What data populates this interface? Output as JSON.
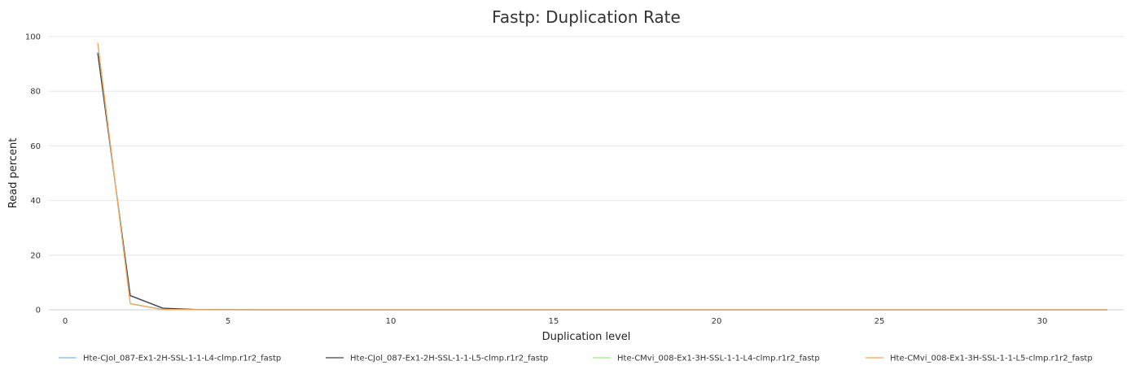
{
  "chart_data": {
    "type": "line",
    "title": "Fastp: Duplication Rate",
    "xlabel": "Duplication level",
    "ylabel": "Read percent",
    "xlim": [
      -0.5,
      32.5
    ],
    "ylim": [
      0,
      100
    ],
    "x_ticks": [
      0,
      5,
      10,
      15,
      20,
      25,
      30
    ],
    "y_ticks": [
      0,
      20,
      40,
      60,
      80,
      100
    ],
    "grid": true,
    "legend_position": "bottom",
    "series": [
      {
        "name": "Hte-CJol_087-Ex1-2H-SSL-1-1-L4-clmp.r1r2_fastp",
        "color": "#7cb5ec",
        "x": [
          1,
          2,
          3,
          4,
          5,
          6,
          7,
          8,
          9,
          10,
          11,
          12,
          13,
          14,
          15,
          16,
          17,
          18,
          19,
          20,
          21,
          22,
          23,
          24,
          25,
          26,
          27,
          28,
          29,
          30,
          31,
          32
        ],
        "y": [
          94.2,
          5.1,
          0.5,
          0.1,
          0.03,
          0.01,
          0,
          0,
          0,
          0,
          0,
          0,
          0,
          0,
          0,
          0,
          0,
          0,
          0,
          0,
          0,
          0,
          0,
          0,
          0,
          0,
          0,
          0,
          0,
          0,
          0,
          0
        ]
      },
      {
        "name": "Hte-CJol_087-Ex1-2H-SSL-1-1-L5-clmp.r1r2_fastp",
        "color": "#434348",
        "x": [
          1,
          2,
          3,
          4,
          5,
          6,
          7,
          8,
          9,
          10,
          11,
          12,
          13,
          14,
          15,
          16,
          17,
          18,
          19,
          20,
          21,
          22,
          23,
          24,
          25,
          26,
          27,
          28,
          29,
          30,
          31,
          32
        ],
        "y": [
          94.0,
          5.2,
          0.6,
          0.1,
          0.03,
          0.01,
          0,
          0,
          0,
          0,
          0,
          0,
          0,
          0,
          0,
          0,
          0,
          0,
          0,
          0,
          0,
          0,
          0,
          0,
          0,
          0,
          0,
          0,
          0,
          0,
          0,
          0
        ]
      },
      {
        "name": "Hte-CMvi_008-Ex1-3H-SSL-1-1-L4-clmp.r1r2_fastp",
        "color": "#90ed7d",
        "x": [
          1,
          2,
          3,
          4,
          5,
          6,
          7,
          8,
          9,
          10,
          11,
          12,
          13,
          14,
          15,
          16,
          17,
          18,
          19,
          20,
          21,
          22,
          23,
          24,
          25,
          26,
          27,
          28,
          29,
          30,
          31,
          32
        ],
        "y": [
          97.6,
          2.3,
          0.1,
          0.02,
          0,
          0,
          0,
          0,
          0,
          0,
          0,
          0,
          0,
          0,
          0,
          0,
          0,
          0,
          0,
          0,
          0,
          0,
          0,
          0,
          0,
          0,
          0,
          0,
          0,
          0,
          0,
          0
        ]
      },
      {
        "name": "Hte-CMvi_008-Ex1-3H-SSL-1-1-L5-clmp.r1r2_fastp",
        "color": "#f7a35c",
        "x": [
          1,
          2,
          3,
          4,
          5,
          6,
          7,
          8,
          9,
          10,
          11,
          12,
          13,
          14,
          15,
          16,
          17,
          18,
          19,
          20,
          21,
          22,
          23,
          24,
          25,
          26,
          27,
          28,
          29,
          30,
          31,
          32
        ],
        "y": [
          97.7,
          2.2,
          0.1,
          0.02,
          0,
          0,
          0,
          0,
          0,
          0,
          0,
          0,
          0,
          0,
          0,
          0,
          0,
          0,
          0,
          0,
          0,
          0,
          0,
          0,
          0,
          0,
          0,
          0,
          0,
          0,
          0,
          0
        ]
      }
    ]
  }
}
